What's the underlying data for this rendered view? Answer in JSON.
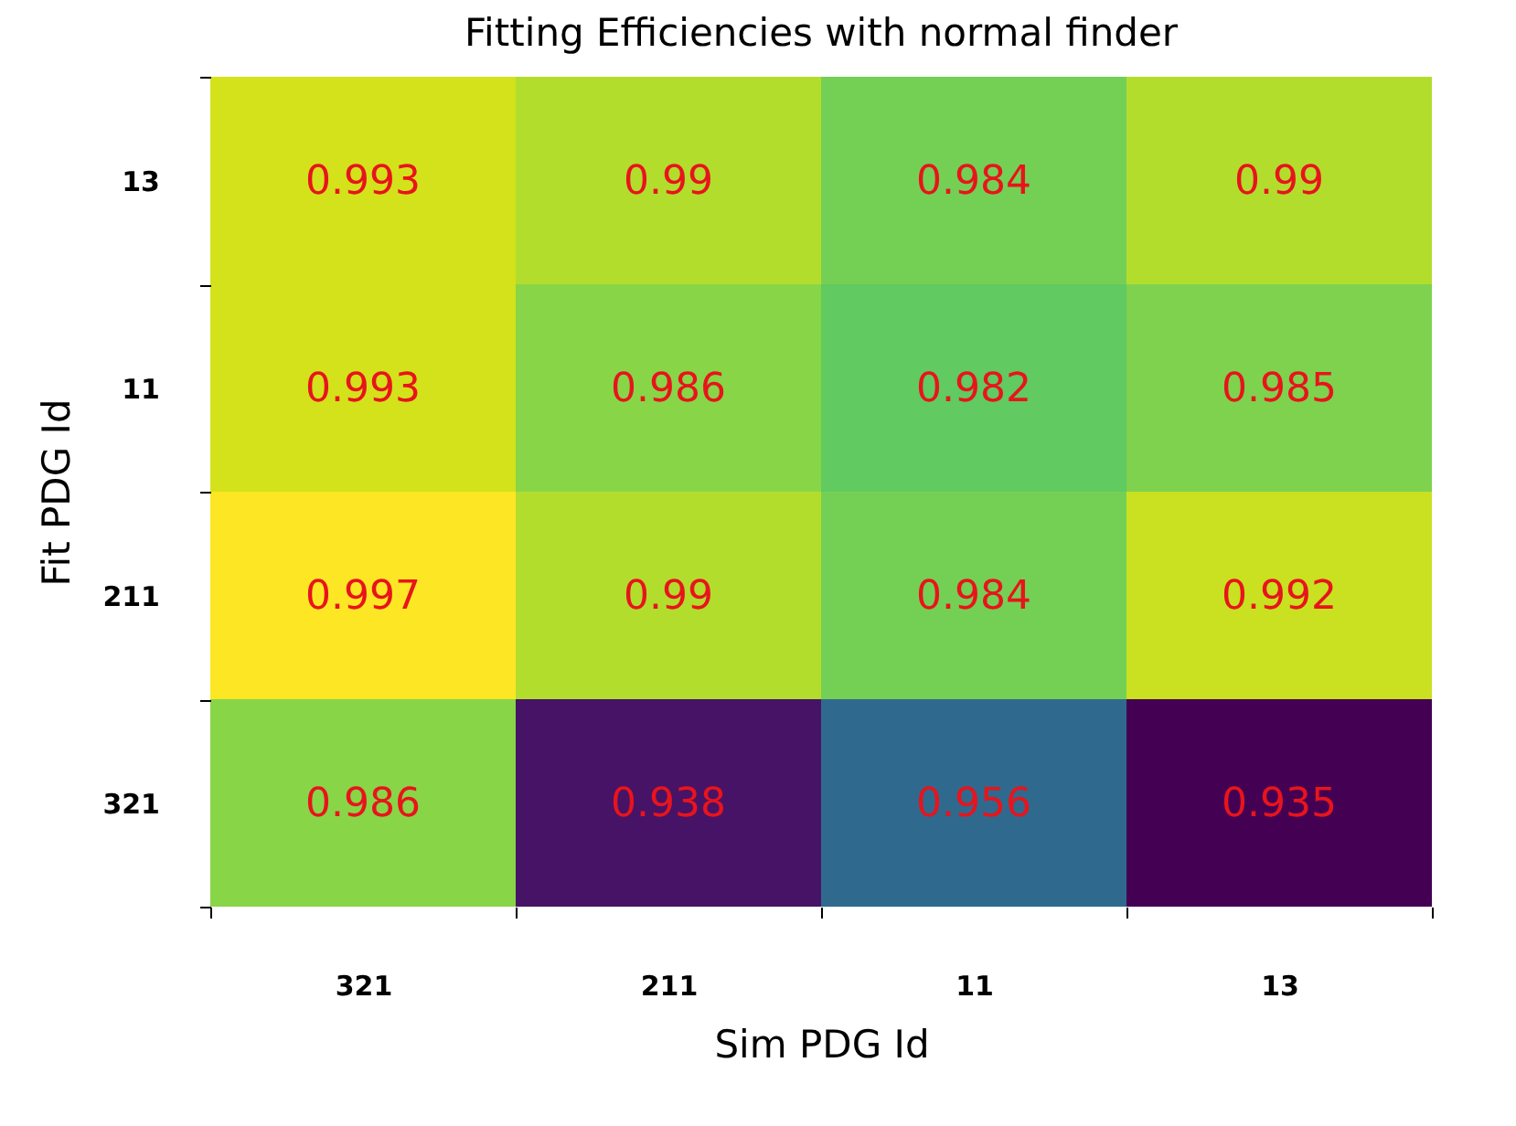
{
  "chart_data": {
    "type": "heatmap",
    "title": "Fitting Efficiencies with normal finder",
    "xlabel": "Sim PDG Id",
    "ylabel": "Fit PDG Id",
    "categories": [
      "321",
      "211",
      "11",
      "13"
    ],
    "y_categories": [
      "13",
      "11",
      "211",
      "321"
    ],
    "cells": [
      [
        0.993,
        0.99,
        0.984,
        0.99
      ],
      [
        0.993,
        0.986,
        0.982,
        0.985
      ],
      [
        0.997,
        0.99,
        0.984,
        0.992
      ],
      [
        0.986,
        0.938,
        0.956,
        0.935
      ]
    ],
    "data_labels": true
  }
}
